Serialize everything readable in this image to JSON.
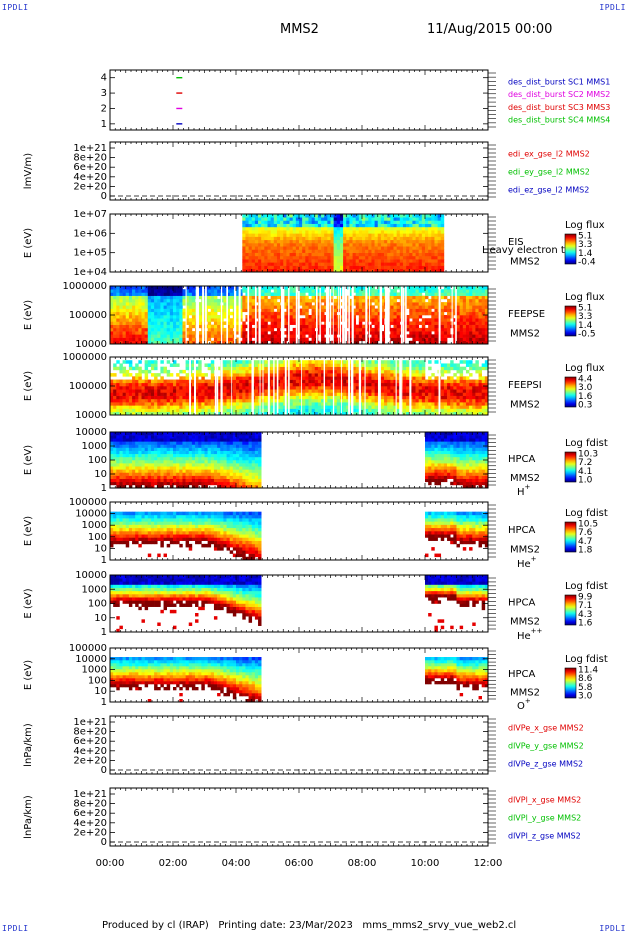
{
  "corner_labels": {
    "tl": "IPDLI",
    "tr": "IPDLI",
    "bl": "IPDLI",
    "br": "IPDLI"
  },
  "header": {
    "spacecraft": "MMS2",
    "date_time": "11/Aug/2015 00:00"
  },
  "footer": {
    "text": "Produced by cl (IRAP)   Printing date: 23/Mar/2023   mms_mms2_srvy_vue_web2.cl"
  },
  "colors": {
    "red": "#e00000",
    "green": "#00c000",
    "blue": "#0000c0",
    "magenta": "#e000e0",
    "purple": "#a000d0"
  },
  "chart_data": [
    {
      "type": "line",
      "id": "des_dist_burst",
      "yticks": [
        "4",
        "3",
        "2",
        "1"
      ],
      "yrange": [
        0.6,
        4.5
      ],
      "legend": [
        {
          "text": "des_dist_burst SC1 MMS1",
          "color": "#0000c0"
        },
        {
          "text": "des_dist_burst SC2 MMS2",
          "color": "#e000e0"
        },
        {
          "text": "des_dist_burst SC3 MMS3",
          "color": "#e00000"
        },
        {
          "text": "des_dist_burst SC4 MMS4",
          "color": "#00c000"
        }
      ],
      "marks": [
        {
          "t": 2.2,
          "y": 4,
          "color": "#00c000"
        },
        {
          "t": 2.2,
          "y": 3,
          "color": "#e00000"
        },
        {
          "t": 2.2,
          "y": 2,
          "color": "#e000e0"
        },
        {
          "t": 2.2,
          "y": 1,
          "color": "#0000c0"
        }
      ]
    },
    {
      "type": "line",
      "id": "edi",
      "ylabel": "lmV/m)",
      "yticks": [
        "1e+21",
        "8e+20",
        "6e+20",
        "4e+20",
        "2e+20",
        "0"
      ],
      "legend": [
        {
          "text": "edi_ex_gse_l2 MMS2",
          "color": "#e00000"
        },
        {
          "text": "edi_ey_gse_l2 MMS2",
          "color": "#00c000"
        },
        {
          "text": "edi_ez_gse_l2 MMS2",
          "color": "#0000c0"
        }
      ],
      "zero_line": true
    },
    {
      "type": "heatmap",
      "id": "eis",
      "ylabel": "E (eV)",
      "yticks": [
        "1e+07",
        "1e+06",
        "1e+05",
        "1e+04"
      ],
      "labels": [
        "EIS",
        "MMS2"
      ],
      "overlay_label": "Heavy electron to",
      "colorbar": {
        "title": "Log flux",
        "ticks": [
          "5.1",
          "3.3",
          "1.4",
          "-0.4"
        ]
      },
      "time_range": [
        4.2,
        10.6
      ]
    },
    {
      "type": "heatmap",
      "id": "feepse",
      "ylabel": "E (eV)",
      "yticks": [
        "1000000",
        "100000",
        "10000"
      ],
      "labels": [
        "FEEPSE",
        "MMS2"
      ],
      "colorbar": {
        "title": "Log flux",
        "ticks": [
          "5.1",
          "3.3",
          "1.4",
          "-0.5"
        ]
      },
      "time_range": [
        0,
        12
      ]
    },
    {
      "type": "heatmap",
      "id": "feepsi",
      "ylabel": "E (eV)",
      "yticks": [
        "1000000",
        "100000",
        "10000"
      ],
      "labels": [
        "FEEPSI",
        "MMS2"
      ],
      "colorbar": {
        "title": "Log flux",
        "ticks": [
          "4.4",
          "3.0",
          "1.6",
          "0.3"
        ]
      },
      "time_range": [
        0,
        12
      ]
    },
    {
      "type": "heatmap",
      "id": "hpca_h",
      "ylabel": "E (eV)",
      "yticks": [
        "10000",
        "1000",
        "100",
        "10",
        "1"
      ],
      "labels": [
        "HPCA",
        "MMS2"
      ],
      "species": {
        "base": "H",
        "sup": "+"
      },
      "colorbar": {
        "title": "Log fdist",
        "ticks": [
          "10.3",
          "7.2",
          "4.1",
          "1.0"
        ]
      },
      "time_ranges": [
        [
          0,
          4.8
        ],
        [
          10.0,
          12
        ]
      ]
    },
    {
      "type": "heatmap",
      "id": "hpca_he",
      "ylabel": "E (eV)",
      "yticks": [
        "100000",
        "10000",
        "1000",
        "100",
        "10",
        "1"
      ],
      "labels": [
        "HPCA",
        "MMS2"
      ],
      "species": {
        "base": "He",
        "sup": "+"
      },
      "colorbar": {
        "title": "Log fdist",
        "ticks": [
          "10.5",
          "7.6",
          "4.7",
          "1.8"
        ]
      },
      "time_ranges": [
        [
          0,
          4.8
        ],
        [
          10.0,
          12
        ]
      ]
    },
    {
      "type": "heatmap",
      "id": "hpca_he2",
      "ylabel": "E (eV)",
      "yticks": [
        "10000",
        "1000",
        "100",
        "10",
        "1"
      ],
      "labels": [
        "HPCA",
        "MMS2"
      ],
      "species": {
        "base": "He",
        "sup": "++"
      },
      "colorbar": {
        "title": "Log fdist",
        "ticks": [
          "9.9",
          "7.1",
          "4.3",
          "1.6"
        ]
      },
      "time_ranges": [
        [
          0,
          4.8
        ],
        [
          10.0,
          12
        ]
      ]
    },
    {
      "type": "heatmap",
      "id": "hpca_o",
      "ylabel": "E (eV)",
      "yticks": [
        "100000",
        "10000",
        "1000",
        "100",
        "10",
        "1"
      ],
      "labels": [
        "HPCA",
        "MMS2"
      ],
      "species": {
        "base": "O",
        "sup": "+"
      },
      "colorbar": {
        "title": "Log fdist",
        "ticks": [
          "11.4",
          "8.6",
          "5.8",
          "3.0"
        ]
      },
      "time_ranges": [
        [
          0,
          4.8
        ],
        [
          10.0,
          12
        ]
      ]
    },
    {
      "type": "line",
      "id": "divpe",
      "ylabel": "lnPa/km)",
      "yticks": [
        "1e+21",
        "8e+20",
        "6e+20",
        "4e+20",
        "2e+20",
        "0"
      ],
      "legend": [
        {
          "text": "dlVPe_x_gse MMS2",
          "color": "#e00000"
        },
        {
          "text": "dlVPe_y_gse MMS2",
          "color": "#00c000"
        },
        {
          "text": "dlVPe_z_gse MMS2",
          "color": "#0000c0"
        }
      ],
      "zero_line": true
    },
    {
      "type": "line",
      "id": "divpi",
      "ylabel": "lnPa/km)",
      "yticks": [
        "1e+21",
        "8e+20",
        "6e+20",
        "4e+20",
        "2e+20",
        "0"
      ],
      "legend": [
        {
          "text": "dlVPl_x_gse MMS2",
          "color": "#e00000"
        },
        {
          "text": "dlVPl_y_gse MMS2",
          "color": "#00c000"
        },
        {
          "text": "dlVPl_z_gse MMS2",
          "color": "#0000c0"
        }
      ],
      "zero_line": true
    }
  ],
  "xaxis": {
    "ticks": [
      "00:00",
      "02:00",
      "04:00",
      "06:00",
      "08:00",
      "10:00",
      "12:00"
    ],
    "range": [
      0,
      12
    ]
  }
}
